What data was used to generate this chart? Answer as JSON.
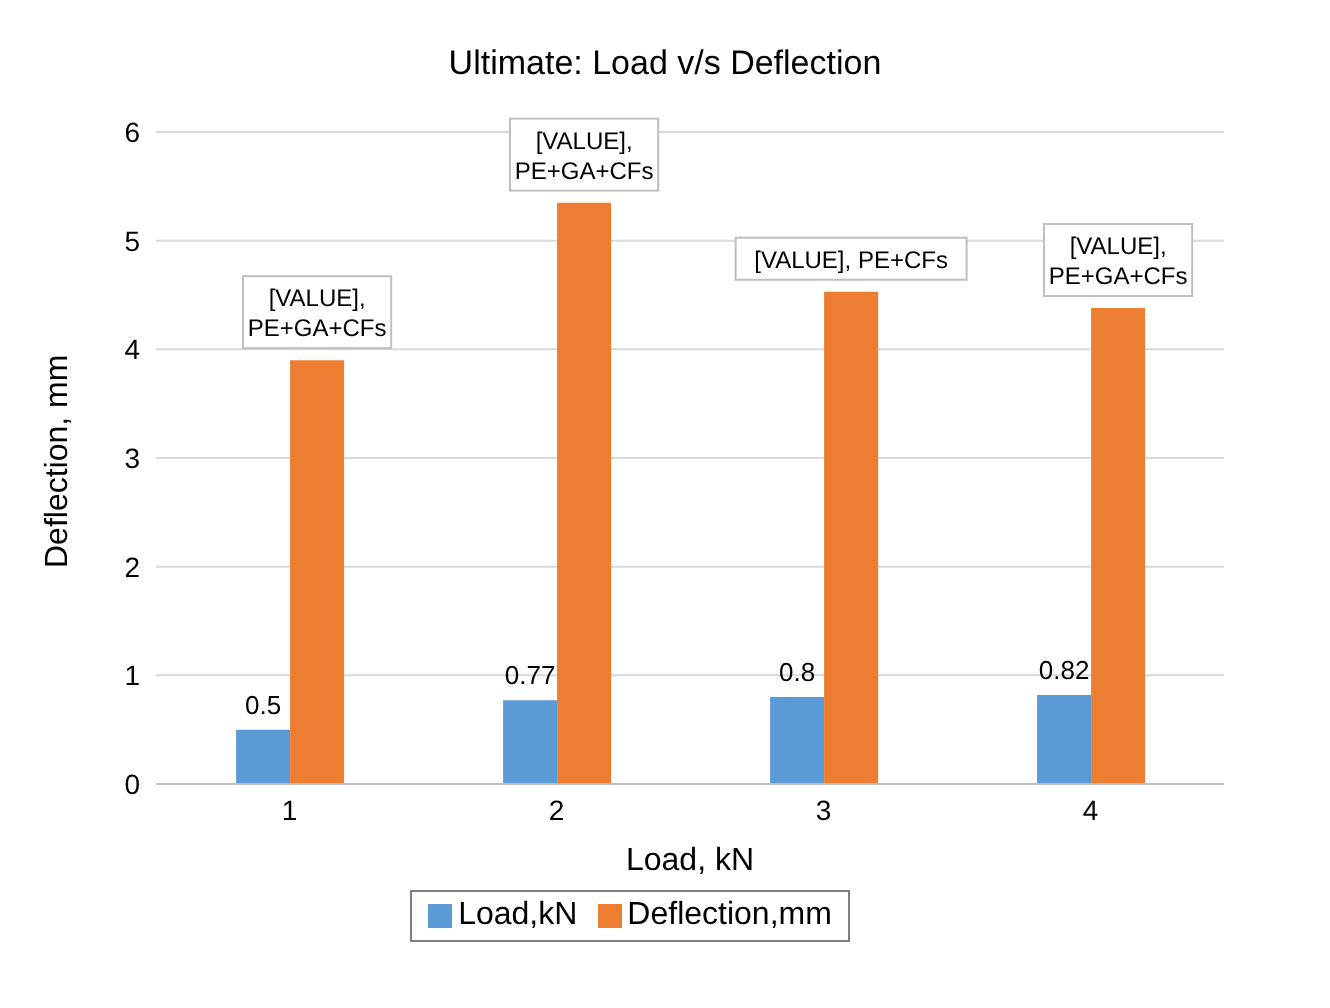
{
  "chart_data": {
    "type": "bar",
    "title": "Ultimate: Load v/s Deflection",
    "xlabel": "Load, kN",
    "ylabel": "Deflection, mm",
    "categories": [
      "1",
      "2",
      "3",
      "4"
    ],
    "series": [
      {
        "name": "Load,kN",
        "color": "#5b9bd5",
        "values": [
          0.5,
          0.77,
          0.8,
          0.82
        ],
        "value_labels": [
          "0.5",
          "0.77",
          "0.8",
          "0.82"
        ]
      },
      {
        "name": "Deflection,mm",
        "color": "#ed7d31",
        "values": [
          3.9,
          5.35,
          4.53,
          4.38
        ],
        "value_labels": [
          "[VALUE], PE+GA+CFs",
          "[VALUE], PE+GA+CFs",
          "[VALUE], PE+CFs",
          "[VALUE], PE+GA+CFs"
        ]
      }
    ],
    "ylim": [
      0,
      6
    ],
    "yticks": [
      0,
      1,
      2,
      3,
      4,
      5,
      6
    ],
    "grid": "y",
    "legend": "bottom"
  }
}
